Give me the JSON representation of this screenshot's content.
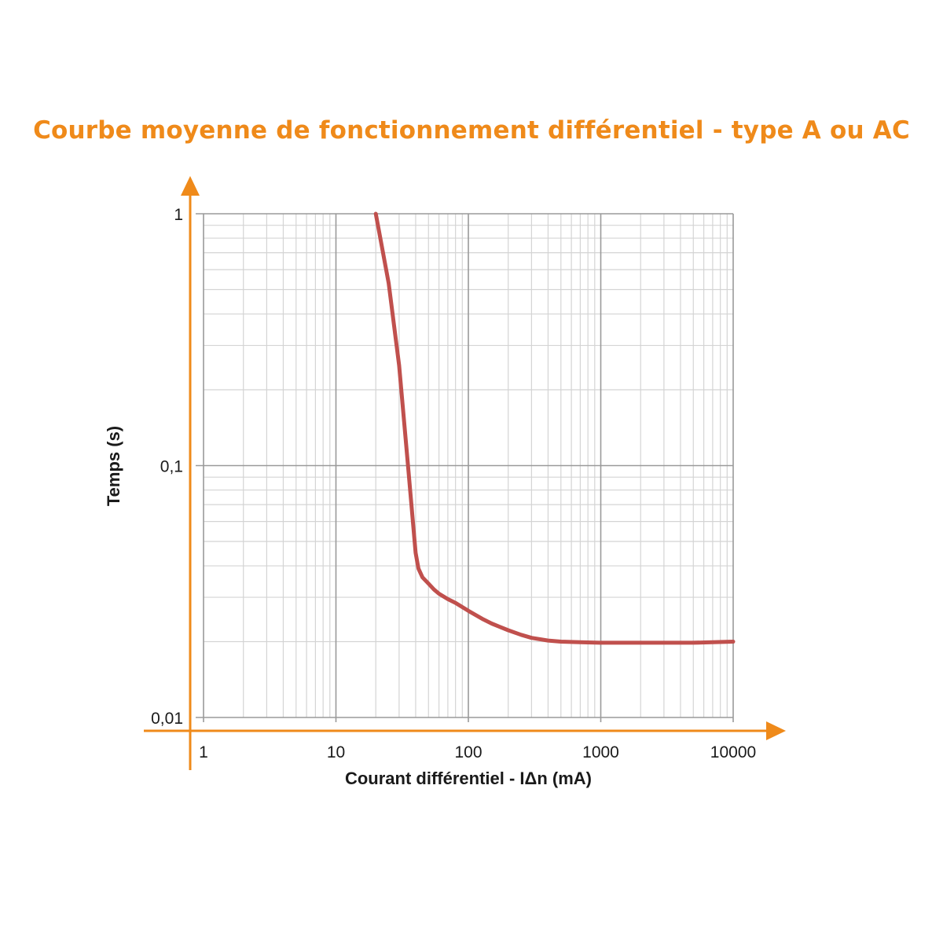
{
  "chart_data": {
    "type": "line",
    "title": "Courbe moyenne de fonctionnement différentiel - type A ou AC",
    "xlabel": "Courant différentiel - IΔn (mA)",
    "ylabel": "Temps (s)",
    "xscale": "log",
    "yscale": "log",
    "xlim": [
      1,
      10000
    ],
    "ylim": [
      0.01,
      1
    ],
    "x_ticks": [
      {
        "value": 1,
        "label": "1"
      },
      {
        "value": 10,
        "label": "10"
      },
      {
        "value": 100,
        "label": "100"
      },
      {
        "value": 1000,
        "label": "1000"
      },
      {
        "value": 10000,
        "label": "10000"
      }
    ],
    "y_ticks": [
      {
        "value": 0.01,
        "label": "0,01"
      },
      {
        "value": 0.1,
        "label": "0,1"
      },
      {
        "value": 1,
        "label": "1"
      }
    ],
    "grid": true,
    "series": [
      {
        "color": "#c0504d",
        "x": [
          20,
          25,
          30,
          35,
          40,
          42,
          45,
          50,
          55,
          60,
          70,
          80,
          100,
          130,
          150,
          200,
          250,
          300,
          400,
          500,
          700,
          1000,
          2000,
          5000,
          10000
        ],
        "y": [
          1.0,
          0.53,
          0.25,
          0.1,
          0.045,
          0.039,
          0.036,
          0.034,
          0.0322,
          0.031,
          0.0295,
          0.0285,
          0.0265,
          0.0245,
          0.0236,
          0.0222,
          0.0213,
          0.0207,
          0.0202,
          0.02,
          0.0199,
          0.0198,
          0.0198,
          0.0198,
          0.02
        ]
      }
    ],
    "colors": {
      "title": "#ef8a1a",
      "axis": "#ef8a1a",
      "grid_major": "#9a9a9a",
      "grid_minor": "#d4d4d4"
    }
  }
}
